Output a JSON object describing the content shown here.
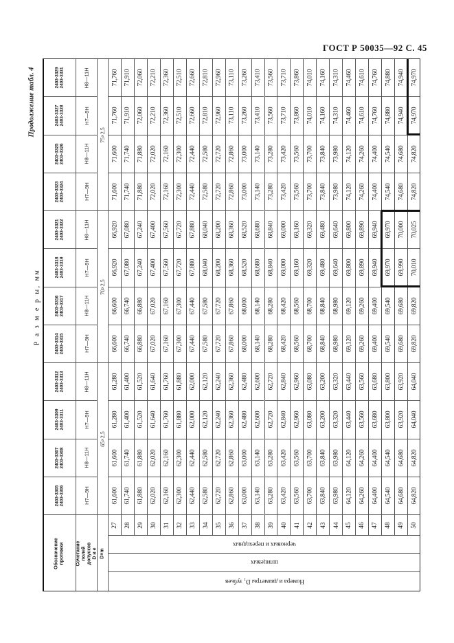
{
  "page_header": "ГОСТ Р 50035—92 С. 45",
  "continuation": "Продолжение табл. 4",
  "sizes_caption": "Р а з м е р ы,  мм",
  "stub": {
    "designation": "Обозначение протяжки",
    "tolerance": "Сочетание полей допусков D и e",
    "dm": "D×m"
  },
  "row_header_labels": {
    "rough": "черновых и переходных",
    "spline": "шлицевых",
    "numbers": "Номера и диаметры D₁ зубьев"
  },
  "rows": [
    "27",
    "28",
    "29",
    "30",
    "31",
    "32",
    "33",
    "34",
    "35",
    "36",
    "37",
    "38",
    "39",
    "40",
    "41",
    "42",
    "43",
    "44",
    "45",
    "46",
    "47",
    "48",
    "49",
    "50"
  ],
  "groups": [
    {
      "label": "65×2,5",
      "span": 4
    },
    {
      "label": "70×2,5",
      "span": 4
    },
    {
      "label": "75×2,5",
      "span": 4
    }
  ],
  "columns": [
    {
      "codes": [
        "2403-3305",
        "2403-3306"
      ],
      "tol": "H7—9H",
      "values": [
        "61,600",
        "61,740",
        "61,880",
        "62,020",
        "62,160",
        "62,300",
        "62,440",
        "62,580",
        "62,720",
        "62,860",
        "63,000",
        "63,140",
        "63,280",
        "63,420",
        "63,560",
        "63,700",
        "63,840",
        "63,980",
        "64,120",
        "64,260",
        "64,400",
        "64,540",
        "64,680",
        "64,820"
      ]
    },
    {
      "codes": [
        "2403-3307",
        "2403-3308"
      ],
      "tol": "H8—11H",
      "values": [
        "61,600",
        "61,740",
        "61,880",
        "62,020",
        "62,160",
        "62,300",
        "62,440",
        "62,580",
        "62,720",
        "62,860",
        "63,000",
        "63,140",
        "63,280",
        "63,420",
        "63,560",
        "63,700",
        "63,840",
        "63,980",
        "64,120",
        "64,260",
        "64,400",
        "64,540",
        "64,680",
        "64,820"
      ]
    },
    {
      "codes": [
        "2403-3309",
        "2403-3311"
      ],
      "tol": "H7—9H",
      "values": [
        "61,280",
        "61,400",
        "61,520",
        "61,640",
        "61,760",
        "61,880",
        "62,000",
        "62,120",
        "62,240",
        "62,360",
        "62,480",
        "62,600",
        "62,720",
        "62,840",
        "62,960",
        "63,080",
        "63,200",
        "63,320",
        "63,440",
        "63,560",
        "63,680",
        "63,800",
        "63,920",
        "64,040"
      ]
    },
    {
      "codes": [
        "2403-3312",
        "2403-3313"
      ],
      "tol": "H8—11H",
      "values": [
        "61,280",
        "61,400",
        "61,520",
        "61,640",
        "61,760",
        "61,880",
        "62,000",
        "62,120",
        "62,240",
        "62,360",
        "62,480",
        "62,600",
        "62,720",
        "62,840",
        "62,960",
        "63,080",
        "63,200",
        "63,320",
        "63,440",
        "63,560",
        "63,680",
        "63,800",
        "63,920",
        "64,040"
      ]
    },
    {
      "codes": [
        "2403-3314",
        "2403-3315"
      ],
      "tol": "H7—9H",
      "values": [
        "66,600",
        "66,740",
        "66,880",
        "67,020",
        "67,160",
        "67,300",
        "67,440",
        "67,580",
        "67,720",
        "67,860",
        "68,000",
        "68,140",
        "68,280",
        "68,420",
        "68,560",
        "68,700",
        "68,840",
        "68,980",
        "69,120",
        "69,260",
        "69,400",
        "69,540",
        "69,680",
        "69,820"
      ]
    },
    {
      "codes": [
        "2403-3316",
        "2403-3317"
      ],
      "tol": "H8—11H",
      "values": [
        "66,600",
        "66,740",
        "66,880",
        "67,020",
        "67,160",
        "67,300",
        "67,440",
        "67,580",
        "67,720",
        "67,860",
        "68,000",
        "68,140",
        "68,280",
        "68,420",
        "68,560",
        "68,700",
        "68,840",
        "68,980",
        "69,120",
        "69,260",
        "69,400",
        "69,540",
        "69,680",
        "69,820"
      ]
    },
    {
      "codes": [
        "2403-3318",
        "2403-3319"
      ],
      "tol": "H7—9H",
      "values": [
        "66,920",
        "67,080",
        "67,240",
        "67,400",
        "67,560",
        "67,720",
        "67,880",
        "68,040",
        "68,200",
        "68,360",
        "68,520",
        "68,680",
        "68,840",
        "69,000",
        "69,160",
        "69,320",
        "69,480",
        "69,640",
        "69,800",
        "69,890",
        "69,940",
        "69,970",
        "69,990",
        "70,010"
      ]
    },
    {
      "codes": [
        "2403-3321",
        "2403-3322"
      ],
      "tol": "H8—11H",
      "values": [
        "66,920",
        "67,080",
        "67,240",
        "67,400",
        "67,560",
        "67,720",
        "67,880",
        "68,040",
        "68,200",
        "68,360",
        "68,520",
        "68,680",
        "68,840",
        "69,000",
        "69,160",
        "69,320",
        "69,480",
        "69,640",
        "69,800",
        "69,890",
        "69,940",
        "69,970",
        "70,000",
        "70,025"
      ]
    },
    {
      "codes": [
        "2403-3323",
        "2403-3324"
      ],
      "tol": "H7—9H",
      "values": [
        "71,600",
        "71,740",
        "71,880",
        "72,020",
        "72,160",
        "72,300",
        "72,440",
        "72,580",
        "72,720",
        "72,860",
        "73,000",
        "73,140",
        "73,280",
        "73,420",
        "73,560",
        "73,700",
        "73,840",
        "73,980",
        "74,120",
        "74,260",
        "74,400",
        "74,540",
        "74,680",
        "74,820"
      ]
    },
    {
      "codes": [
        "2403-3325",
        "2403-3326"
      ],
      "tol": "H8—11H",
      "values": [
        "71,600",
        "71,740",
        "71,880",
        "72,020",
        "72,160",
        "72,300",
        "72,440",
        "72,580",
        "72,720",
        "72,860",
        "73,000",
        "73,140",
        "73,280",
        "73,420",
        "73,560",
        "73,700",
        "73,840",
        "73,980",
        "74,120",
        "74,260",
        "74,400",
        "74,540",
        "74,680",
        "74,820"
      ]
    },
    {
      "codes": [
        "2403-3327",
        "2403-3328"
      ],
      "tol": "H7—9H",
      "values": [
        "71,760",
        "71,910",
        "72,060",
        "72,210",
        "72,360",
        "72,510",
        "72,660",
        "72,810",
        "72,960",
        "73,110",
        "73,260",
        "73,410",
        "73,560",
        "73,710",
        "73,860",
        "74,010",
        "74,160",
        "74,310",
        "74,460",
        "74,610",
        "74,760",
        "74,880",
        "74,940",
        "74,970"
      ]
    },
    {
      "codes": [
        "2403-3329",
        "2403-3331"
      ],
      "tol": "H8—11H",
      "values": [
        "71,760",
        "71,910",
        "72,060",
        "72,210",
        "72,360",
        "72,510",
        "72,660",
        "72,810",
        "72,960",
        "73,110",
        "73,260",
        "73,410",
        "73,560",
        "73,710",
        "73,860",
        "74,010",
        "74,160",
        "74,310",
        "74,460",
        "74,610",
        "74,760",
        "74,880",
        "74,940",
        "74,970"
      ]
    }
  ]
}
